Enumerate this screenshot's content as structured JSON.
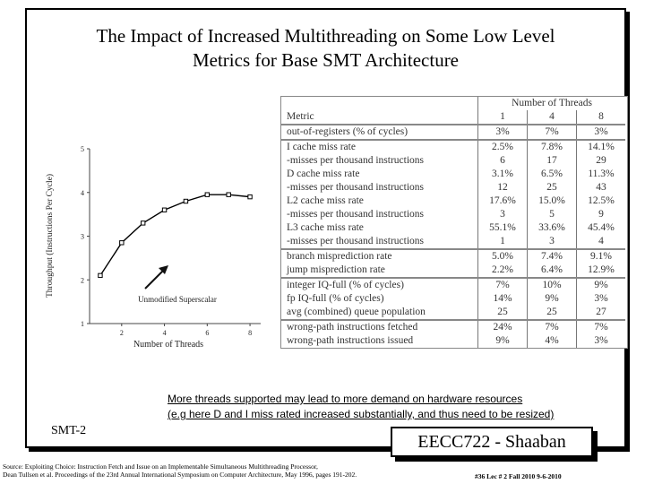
{
  "slide": {
    "title_line1": "The Impact of Increased Multithreading on Some Low Level",
    "title_line2": "Metrics for Base SMT Architecture",
    "note_line1": "More threads supported may lead to more demand on hardware resources",
    "note_line2": "(e.g here D and I miss rated increased substantially, and thus need to be resized)",
    "label": "SMT-2",
    "course_box": "EECC722 - Shaaban",
    "source_line1": "Source:   Exploiting Choice: Instruction Fetch and Issue on an Implementable Simultaneous Multithreading Processor,",
    "source_line2": "Dean Tullsen et al. Proceedings of the 23rd Annual International Symposium on Computer Architecture, May 1996, pages 191-202.",
    "footer": "#36   Lec # 2   Fall 2010  9-6-2010"
  },
  "chart_data": {
    "type": "line",
    "xlabel": "Number of Threads",
    "ylabel": "Throughput (Instructions Per Cycle)",
    "xlim": [
      0.5,
      8.5
    ],
    "ylim": [
      1,
      5
    ],
    "xticks": [
      "2",
      "4",
      "6",
      "8"
    ],
    "yticks": [
      "1",
      "2",
      "3",
      "4",
      "5"
    ],
    "annotation": "Unmodified Superscalar",
    "grid": false,
    "series": [
      {
        "x": [
          1,
          2,
          3,
          4,
          5,
          6,
          7,
          8
        ],
        "values": [
          2.1,
          2.85,
          3.3,
          3.6,
          3.8,
          3.95,
          3.95,
          3.9
        ]
      }
    ]
  },
  "table": {
    "group_header": "Number of Threads",
    "metric_header": "Metric",
    "thread_headers": [
      "1",
      "4",
      "8"
    ],
    "rows": [
      {
        "metric": "out-of-registers (% of cycles)",
        "values": [
          "3%",
          "7%",
          "3%"
        ],
        "sep": true
      },
      {
        "metric": "I cache miss rate",
        "values": [
          "2.5%",
          "7.8%",
          "14.1%"
        ],
        "sep": true
      },
      {
        "metric": "-misses per thousand instructions",
        "values": [
          "6",
          "17",
          "29"
        ]
      },
      {
        "metric": "D cache miss rate",
        "values": [
          "3.1%",
          "6.5%",
          "11.3%"
        ]
      },
      {
        "metric": "-misses per thousand instructions",
        "values": [
          "12",
          "25",
          "43"
        ]
      },
      {
        "metric": "L2 cache miss rate",
        "values": [
          "17.6%",
          "15.0%",
          "12.5%"
        ]
      },
      {
        "metric": "-misses per thousand instructions",
        "values": [
          "3",
          "5",
          "9"
        ]
      },
      {
        "metric": "L3 cache miss rate",
        "values": [
          "55.1%",
          "33.6%",
          "45.4%"
        ]
      },
      {
        "metric": "-misses per thousand instructions",
        "values": [
          "1",
          "3",
          "4"
        ]
      },
      {
        "metric": "branch misprediction rate",
        "values": [
          "5.0%",
          "7.4%",
          "9.1%"
        ],
        "sep": true
      },
      {
        "metric": "jump misprediction rate",
        "values": [
          "2.2%",
          "6.4%",
          "12.9%"
        ]
      },
      {
        "metric": "integer IQ-full (% of cycles)",
        "values": [
          "7%",
          "10%",
          "9%"
        ],
        "sep": true
      },
      {
        "metric": "fp IQ-full (% of cycles)",
        "values": [
          "14%",
          "9%",
          "3%"
        ]
      },
      {
        "metric": "avg (combined) queue population",
        "values": [
          "25",
          "25",
          "27"
        ]
      },
      {
        "metric": "wrong-path instructions fetched",
        "values": [
          "24%",
          "7%",
          "7%"
        ],
        "sep": true
      },
      {
        "metric": "wrong-path instructions issued",
        "values": [
          "9%",
          "4%",
          "3%"
        ]
      }
    ]
  }
}
